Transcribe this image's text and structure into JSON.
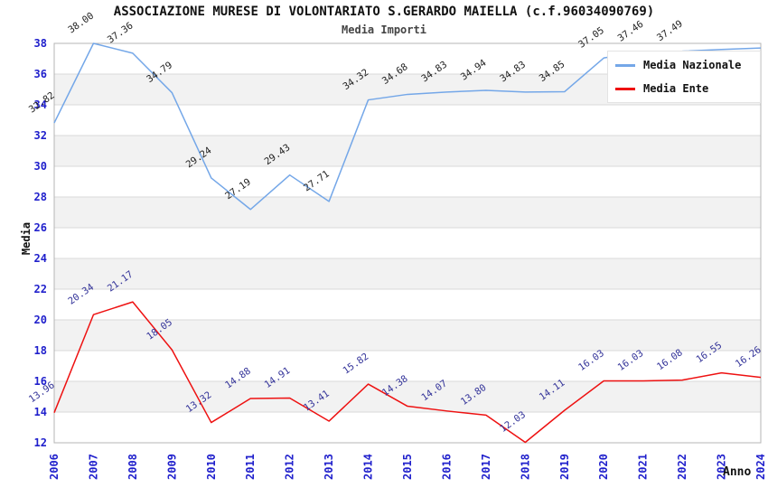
{
  "header": {
    "title": "ASSOCIAZIONE MURESE DI VOLONTARIATO S.GERARDO MAIELLA (c.f.96034090769)",
    "subtitle": "Media Importi"
  },
  "colors": {
    "nazionale_line": "#74a7e8",
    "ente_line": "#ee1111",
    "axis_tick_labels": "#2020cc",
    "nazionale_point_labels": "#222222",
    "ente_point_labels": "#333399",
    "band_gray": "#f2f2f2",
    "gridline": "#d9d9d9",
    "plot_border": "#b5b5b5"
  },
  "chart_data": {
    "type": "line",
    "title": "ASSOCIAZIONE MURESE DI VOLONTARIATO S.GERARDO MAIELLA (c.f.96034090769)",
    "subtitle": "Media Importi",
    "xlabel": "Anno",
    "ylabel": "Media",
    "ylim": [
      12,
      38
    ],
    "ytick_step": 2,
    "grid": "horizontal-only",
    "plot_bands": "alternating white / light gray every 2 units",
    "legend_position": "top-right inside plot",
    "categories": [
      "2006",
      "2007",
      "2008",
      "2009",
      "2010",
      "2011",
      "2012",
      "2013",
      "2014",
      "2015",
      "2016",
      "2017",
      "2018",
      "2019",
      "2020",
      "2021",
      "2022",
      "2023",
      "2024"
    ],
    "series": [
      {
        "name": "Media Nazionale",
        "color": "#74a7e8",
        "label_color": "#222222",
        "values": [
          32.82,
          38.0,
          37.36,
          34.79,
          29.24,
          27.19,
          29.43,
          27.71,
          34.32,
          34.68,
          34.83,
          34.94,
          34.83,
          34.85,
          37.05,
          37.46,
          37.49,
          37.6,
          37.7
        ],
        "point_labels": [
          "32.82",
          "38.00",
          "37.36",
          "34.79",
          "29.24",
          "27.19",
          "29.43",
          "27.71",
          "34.32",
          "34.68",
          "34.83",
          "34.94",
          "34.83",
          "34.85",
          "37.05",
          "37.46",
          "37.49",
          "",
          ""
        ],
        "note": "2023-2024 labels hidden behind legend box"
      },
      {
        "name": "Media Ente",
        "color": "#ee1111",
        "label_color": "#333399",
        "values": [
          13.96,
          20.34,
          21.17,
          18.05,
          13.32,
          14.88,
          14.91,
          13.41,
          15.82,
          14.38,
          14.07,
          13.8,
          12.03,
          14.11,
          16.03,
          16.03,
          16.08,
          16.55,
          16.26
        ],
        "point_labels": [
          "13.96",
          "20.34",
          "21.17",
          "18.05",
          "13.32",
          "14.88",
          "14.91",
          "13.41",
          "15.82",
          "14.38",
          "14.07",
          "13.80",
          "12.03",
          "14.11",
          "16.03",
          "16.03",
          "16.08",
          "16.55",
          "16.26"
        ]
      }
    ]
  }
}
